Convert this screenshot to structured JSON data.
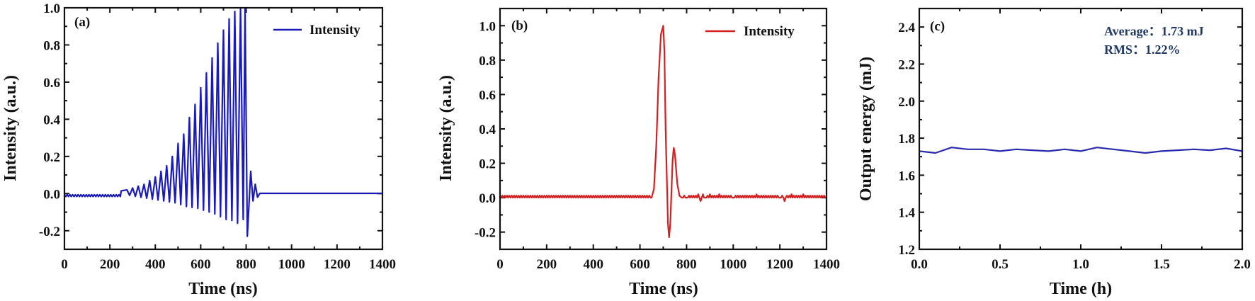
{
  "chart_data": [
    {
      "panel": "(a)",
      "type": "line",
      "title": "",
      "xlabel": "Time (ns)",
      "ylabel": "Intensity (a.u.)",
      "xlim": [
        0,
        1400
      ],
      "ylim": [
        -0.3,
        1.0
      ],
      "xticks": [
        0,
        200,
        400,
        600,
        800,
        1000,
        1200,
        1400
      ],
      "yticks": [
        -0.2,
        0.0,
        0.2,
        0.4,
        0.6,
        0.8,
        1.0
      ],
      "ytick_labels": [
        "-0.2",
        "0.0",
        "0.2",
        "0.4",
        "0.6",
        "0.8",
        "1.0"
      ],
      "legend": {
        "position": "upper right",
        "entries": [
          "Intensity"
        ]
      },
      "grid": false,
      "color": "#1a1ab8",
      "description": "Damped oscillating pulse train: baseline ~-0.01 until ~250 ns, oscillation period ~25 ns with growing envelope reaching 1.0 at ~790-800 ns, sharp drop to -0.23 at ~800 ns, small ringing (0.12 at 820 ns) then flat ~0.0 to 1400 ns.",
      "series": [
        {
          "name": "Intensity",
          "peaks": {
            "x": [
              100,
              150,
              200,
              250,
              275,
              300,
              325,
              350,
              375,
              400,
              425,
              450,
              475,
              500,
              525,
              550,
              575,
              600,
              625,
              650,
              675,
              700,
              725,
              750,
              775,
              795,
              820,
              840
            ],
            "y": [
              0.0,
              0.005,
              0.01,
              0.015,
              0.02,
              0.03,
              0.04,
              0.05,
              0.07,
              0.09,
              0.12,
              0.15,
              0.2,
              0.27,
              0.32,
              0.41,
              0.48,
              0.57,
              0.65,
              0.73,
              0.81,
              0.88,
              0.94,
              0.98,
              1.0,
              1.0,
              0.12,
              0.05
            ]
          },
          "troughs": {
            "x": [
              287,
              312,
              337,
              362,
              387,
              412,
              437,
              462,
              487,
              512,
              537,
              562,
              587,
              612,
              637,
              662,
              687,
              712,
              737,
              762,
              787,
              805,
              830,
              850
            ],
            "y": [
              -0.01,
              -0.015,
              -0.02,
              -0.025,
              -0.03,
              -0.035,
              -0.04,
              -0.045,
              -0.05,
              -0.06,
              -0.07,
              -0.075,
              -0.08,
              -0.09,
              -0.1,
              -0.11,
              -0.125,
              -0.14,
              -0.145,
              -0.16,
              -0.14,
              -0.23,
              -0.04,
              -0.02
            ]
          }
        }
      ]
    },
    {
      "panel": "(b)",
      "type": "line",
      "title": "",
      "xlabel": "Time (ns)",
      "ylabel": "Intensity (a.u.)",
      "xlim": [
        0,
        1400
      ],
      "ylim": [
        -0.3,
        1.1
      ],
      "xticks": [
        0,
        200,
        400,
        600,
        800,
        1000,
        1200,
        1400
      ],
      "yticks": [
        -0.2,
        0.0,
        0.2,
        0.4,
        0.6,
        0.8,
        1.0
      ],
      "ytick_labels": [
        "-0.2",
        "0.0",
        "0.2",
        "0.4",
        "0.6",
        "0.8",
        "1.0"
      ],
      "legend": {
        "position": "upper right",
        "entries": [
          "Intensity"
        ]
      },
      "grid": false,
      "color": "#d42020",
      "series": [
        {
          "name": "Intensity",
          "x": [
            0,
            650,
            660,
            670,
            680,
            690,
            700,
            705,
            710,
            720,
            725,
            730,
            740,
            745,
            750,
            760,
            770,
            780,
            800,
            850,
            860,
            870,
            880,
            900,
            940,
            1000,
            1100,
            1200,
            1220,
            1250,
            1300,
            1400
          ],
          "y": [
            0.0,
            0.0,
            0.05,
            0.3,
            0.7,
            0.95,
            1.0,
            0.85,
            0.4,
            -0.15,
            -0.23,
            -0.15,
            0.22,
            0.29,
            0.25,
            0.08,
            0.01,
            0.0,
            0.0,
            0.02,
            -0.02,
            0.02,
            0.0,
            0.02,
            0.02,
            0.0,
            0.02,
            0.0,
            -0.02,
            0.02,
            0.02,
            0.0
          ]
        }
      ]
    },
    {
      "panel": "(c)",
      "type": "line",
      "title": "",
      "xlabel": "Time (h)",
      "ylabel": "Output energy (mJ)",
      "xlim": [
        0.0,
        2.0
      ],
      "ylim": [
        1.2,
        2.5
      ],
      "xticks": [
        0.0,
        0.5,
        1.0,
        1.5,
        2.0
      ],
      "xtick_labels": [
        "0.0",
        "0.5",
        "1.0",
        "1.5",
        "2.0"
      ],
      "yticks": [
        1.2,
        1.4,
        1.6,
        1.8,
        2.0,
        2.2,
        2.4
      ],
      "ytick_labels": [
        "1.2",
        "1.4",
        "1.6",
        "1.8",
        "2.0",
        "2.2",
        "2.4"
      ],
      "grid": false,
      "color": "#2a2ab0",
      "annotations": [
        "Average：1.73 mJ",
        "RMS：1.22%"
      ],
      "series": [
        {
          "name": "Output energy",
          "x": [
            0.0,
            0.1,
            0.2,
            0.3,
            0.4,
            0.5,
            0.6,
            0.7,
            0.8,
            0.9,
            1.0,
            1.1,
            1.2,
            1.3,
            1.4,
            1.5,
            1.6,
            1.7,
            1.8,
            1.9,
            2.0
          ],
          "y": [
            1.73,
            1.72,
            1.75,
            1.74,
            1.74,
            1.73,
            1.74,
            1.735,
            1.73,
            1.74,
            1.73,
            1.75,
            1.74,
            1.73,
            1.72,
            1.73,
            1.735,
            1.74,
            1.735,
            1.745,
            1.73
          ]
        }
      ]
    }
  ],
  "panels": {
    "a": {
      "label": "(a)",
      "legend": "Intensity",
      "xlabel": "Time (ns)",
      "ylabel": "Intensity (a.u.)"
    },
    "b": {
      "label": "(b)",
      "legend": "Intensity",
      "xlabel": "Time (ns)",
      "ylabel": "Intensity (a.u.)"
    },
    "c": {
      "label": "(c)",
      "xlabel": "Time (h)",
      "ylabel": "Output energy (mJ)",
      "annotation_average": "Average：1.73 mJ",
      "annotation_rms": "RMS：1.22%"
    }
  }
}
